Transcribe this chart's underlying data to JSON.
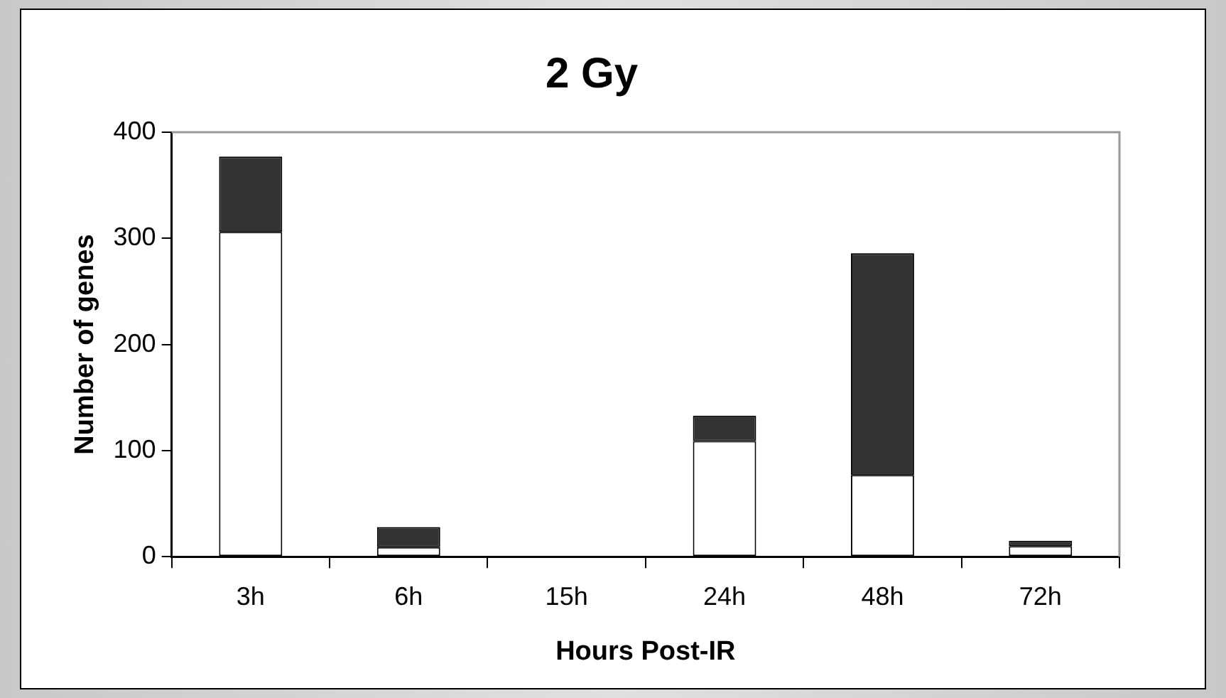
{
  "chart_data": {
    "type": "bar",
    "title": "2 Gy",
    "xlabel": "Hours Post-IR",
    "ylabel": "Number of genes",
    "categories": [
      "3h",
      "6h",
      "15h",
      "24h",
      "48h",
      "72h"
    ],
    "stacked": true,
    "series": [
      {
        "color": "#ffffff",
        "values": [
          306,
          9,
          0,
          109,
          77,
          10
        ]
      },
      {
        "color": "#333333",
        "values": [
          71,
          19,
          0,
          24,
          209,
          5
        ]
      }
    ],
    "ylim": [
      0,
      400
    ],
    "yticks": [
      0,
      100,
      200,
      300,
      400
    ],
    "grid": false,
    "legend": false
  }
}
